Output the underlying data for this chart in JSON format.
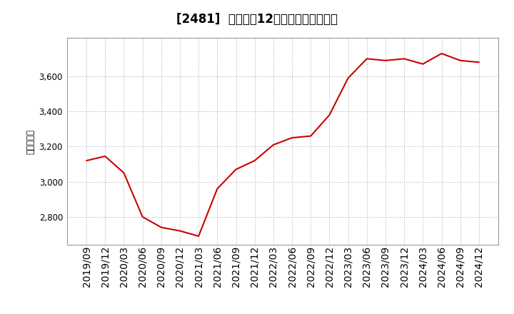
{
  "title": "[2481]  売上高の12か月移動合計の推移",
  "ylabel": "（百万円）",
  "line_color": "#cc0000",
  "background_color": "#ffffff",
  "grid_color": "#aaaaaa",
  "dates": [
    "2019/09",
    "2019/12",
    "2020/03",
    "2020/06",
    "2020/09",
    "2020/12",
    "2021/03",
    "2021/06",
    "2021/09",
    "2021/12",
    "2022/03",
    "2022/06",
    "2022/09",
    "2022/12",
    "2023/03",
    "2023/06",
    "2023/09",
    "2023/12",
    "2024/03",
    "2024/06",
    "2024/09",
    "2024/12"
  ],
  "values": [
    3120,
    3145,
    3050,
    2800,
    2740,
    2720,
    2690,
    2960,
    3070,
    3120,
    3210,
    3250,
    3260,
    3380,
    3590,
    3700,
    3690,
    3700,
    3670,
    3730,
    3690,
    3680
  ],
  "ylim": [
    2640,
    3820
  ],
  "yticks": [
    2800,
    3000,
    3200,
    3400,
    3600
  ],
  "title_fontsize": 12,
  "tick_fontsize": 8.5,
  "ylabel_fontsize": 8.5
}
